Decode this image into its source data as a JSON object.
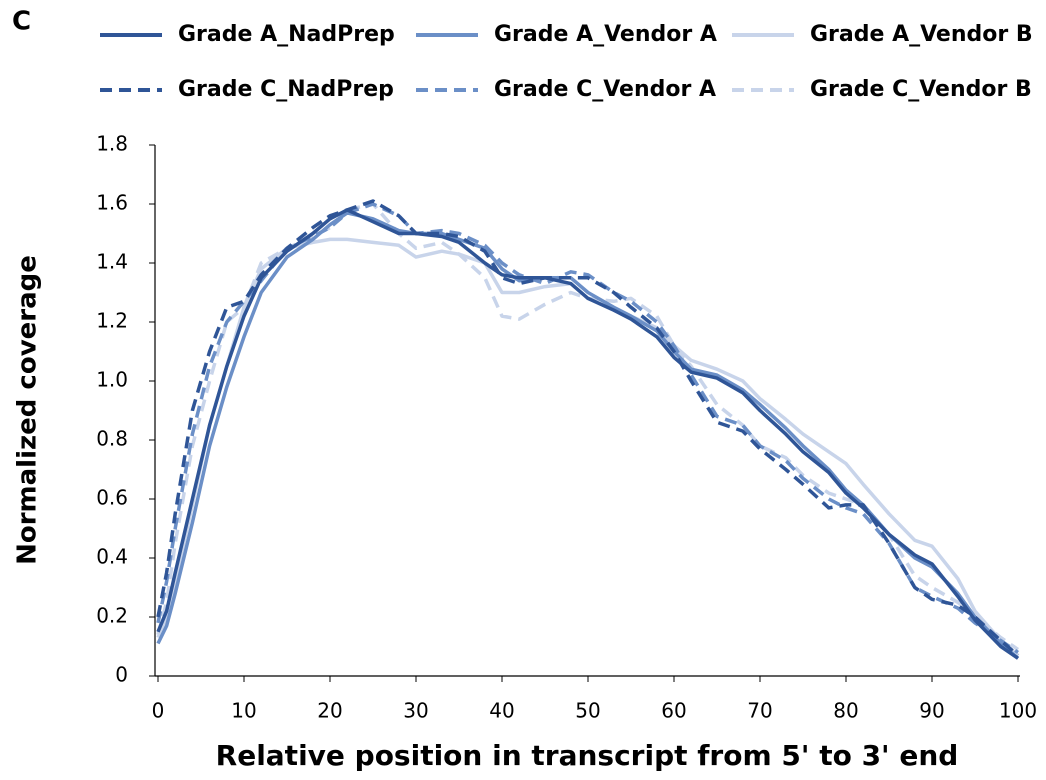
{
  "chart_data": {
    "type": "line",
    "panel_label": "C",
    "xlabel": "Relative position in transcript from 5' to 3' end",
    "ylabel": "Normalized coverage",
    "x": [
      0,
      1,
      2,
      4,
      6,
      8,
      10,
      12,
      15,
      18,
      20,
      22,
      25,
      28,
      30,
      33,
      35,
      38,
      40,
      42,
      45,
      48,
      50,
      53,
      55,
      58,
      60,
      62,
      65,
      68,
      70,
      73,
      75,
      78,
      80,
      82,
      85,
      88,
      90,
      93,
      95,
      98,
      100
    ],
    "series": [
      {
        "name": "Grade A_NadPrep",
        "color": "#2f5597",
        "line_style": "solid",
        "values": [
          0.15,
          0.22,
          0.35,
          0.6,
          0.85,
          1.05,
          1.22,
          1.35,
          1.44,
          1.5,
          1.55,
          1.58,
          1.54,
          1.5,
          1.5,
          1.49,
          1.47,
          1.4,
          1.36,
          1.35,
          1.35,
          1.33,
          1.28,
          1.24,
          1.21,
          1.15,
          1.08,
          1.03,
          1.01,
          0.96,
          0.9,
          0.82,
          0.76,
          0.69,
          0.62,
          0.57,
          0.48,
          0.41,
          0.38,
          0.27,
          0.19,
          0.1,
          0.06
        ]
      },
      {
        "name": "Grade A_Vendor A",
        "color": "#6b8fc7",
        "line_style": "solid",
        "values": [
          0.11,
          0.17,
          0.28,
          0.52,
          0.78,
          0.98,
          1.15,
          1.3,
          1.42,
          1.48,
          1.53,
          1.57,
          1.55,
          1.51,
          1.5,
          1.5,
          1.48,
          1.45,
          1.38,
          1.34,
          1.35,
          1.35,
          1.3,
          1.25,
          1.22,
          1.17,
          1.1,
          1.04,
          1.02,
          0.97,
          0.92,
          0.84,
          0.78,
          0.7,
          0.63,
          0.58,
          0.48,
          0.4,
          0.37,
          0.28,
          0.2,
          0.11,
          0.06
        ]
      },
      {
        "name": "Grade A_Vendor B",
        "color": "#c8d4ea",
        "line_style": "solid",
        "values": [
          0.13,
          0.2,
          0.32,
          0.58,
          0.85,
          1.05,
          1.25,
          1.38,
          1.45,
          1.47,
          1.48,
          1.48,
          1.47,
          1.46,
          1.42,
          1.44,
          1.43,
          1.4,
          1.3,
          1.3,
          1.32,
          1.33,
          1.28,
          1.24,
          1.22,
          1.18,
          1.12,
          1.07,
          1.04,
          1.0,
          0.94,
          0.87,
          0.82,
          0.76,
          0.72,
          0.65,
          0.55,
          0.46,
          0.44,
          0.33,
          0.22,
          0.12,
          0.07
        ]
      },
      {
        "name": "Grade C_NadPrep",
        "color": "#2f5597",
        "line_style": "dashed",
        "values": [
          0.2,
          0.35,
          0.55,
          0.9,
          1.1,
          1.25,
          1.27,
          1.36,
          1.45,
          1.52,
          1.56,
          1.58,
          1.61,
          1.56,
          1.5,
          1.5,
          1.49,
          1.44,
          1.35,
          1.33,
          1.35,
          1.35,
          1.35,
          1.3,
          1.25,
          1.18,
          1.1,
          1.0,
          0.86,
          0.83,
          0.77,
          0.7,
          0.65,
          0.57,
          0.58,
          0.58,
          0.45,
          0.3,
          0.26,
          0.24,
          0.2,
          0.12,
          0.07
        ]
      },
      {
        "name": "Grade C_Vendor A",
        "color": "#6b8fc7",
        "line_style": "dashed",
        "values": [
          0.18,
          0.32,
          0.5,
          0.82,
          1.05,
          1.2,
          1.27,
          1.34,
          1.45,
          1.49,
          1.52,
          1.57,
          1.6,
          1.56,
          1.5,
          1.51,
          1.5,
          1.46,
          1.4,
          1.36,
          1.33,
          1.37,
          1.36,
          1.3,
          1.27,
          1.2,
          1.12,
          1.02,
          0.88,
          0.85,
          0.78,
          0.73,
          0.67,
          0.6,
          0.57,
          0.55,
          0.45,
          0.3,
          0.27,
          0.23,
          0.18,
          0.12,
          0.08
        ]
      },
      {
        "name": "Grade C_Vendor B",
        "color": "#c8d4ea",
        "line_style": "dashed",
        "values": [
          0.14,
          0.25,
          0.45,
          0.78,
          1.0,
          1.2,
          1.25,
          1.4,
          1.45,
          1.49,
          1.52,
          1.58,
          1.6,
          1.5,
          1.45,
          1.47,
          1.43,
          1.35,
          1.22,
          1.21,
          1.26,
          1.3,
          1.28,
          1.27,
          1.28,
          1.22,
          1.12,
          1.05,
          0.92,
          0.85,
          0.78,
          0.74,
          0.68,
          0.62,
          0.6,
          0.58,
          0.48,
          0.34,
          0.3,
          0.25,
          0.2,
          0.13,
          0.09
        ]
      }
    ],
    "xlim": [
      0,
      100
    ],
    "xticks": [
      0,
      10,
      20,
      30,
      40,
      50,
      60,
      70,
      80,
      90,
      100
    ],
    "ylim": [
      0,
      1.8
    ],
    "yticks": [
      0,
      0.2,
      0.4,
      0.6,
      0.8,
      {
        "value": 1.0,
        "label": "1.0"
      },
      1.2,
      1.4,
      1.6,
      1.8
    ],
    "grid": false
  }
}
